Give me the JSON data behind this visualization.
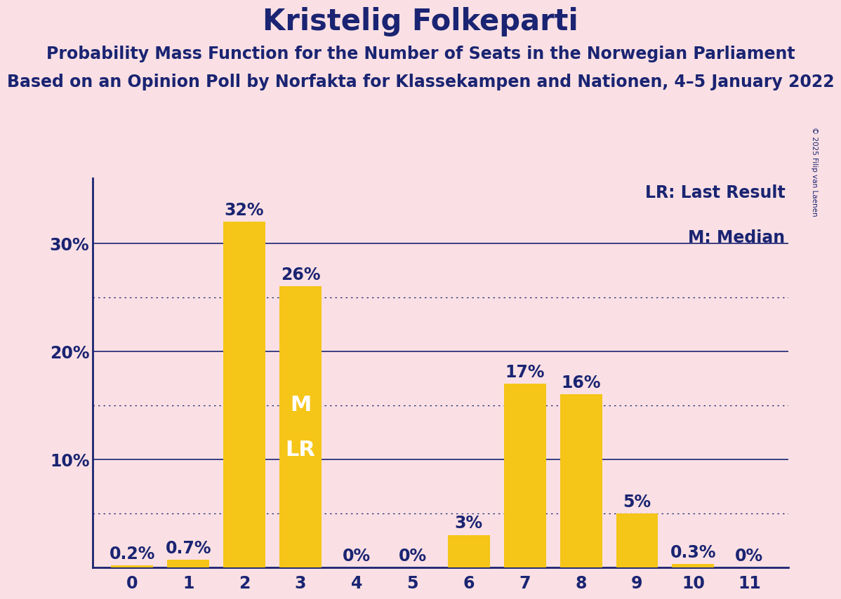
{
  "title": "Kristelig Folkeparti",
  "subtitle1": "Probability Mass Function for the Number of Seats in the Norwegian Parliament",
  "subtitle2": "Based on an Opinion Poll by Norfakta for Klassekampen and Nationen, 4–5 January 2022",
  "copyright": "© 2025 Filip van Laenen",
  "categories": [
    0,
    1,
    2,
    3,
    4,
    5,
    6,
    7,
    8,
    9,
    10,
    11
  ],
  "values": [
    0.2,
    0.7,
    32,
    26,
    0,
    0,
    3,
    17,
    16,
    5,
    0.3,
    0
  ],
  "bar_color": "#F5C518",
  "background_color": "#FAE0E4",
  "text_color": "#1a2472",
  "grid_color": "#1a2472",
  "median_seat": 3,
  "lr_seat": 3,
  "legend_text1": "LR: Last Result",
  "legend_text2": "M: Median",
  "label_fontsize": 17,
  "title_fontsize": 30,
  "subtitle1_fontsize": 17,
  "subtitle2_fontsize": 17,
  "bar_label_fontsize": 17,
  "ml_fontsize": 22,
  "ylim_max": 36,
  "ytick_positions": [
    10,
    20,
    30
  ],
  "ytick_labels": [
    "10%",
    "20%",
    "30%"
  ],
  "dotted_lines": [
    5,
    15,
    25
  ],
  "solid_lines": [
    10,
    20,
    30
  ]
}
